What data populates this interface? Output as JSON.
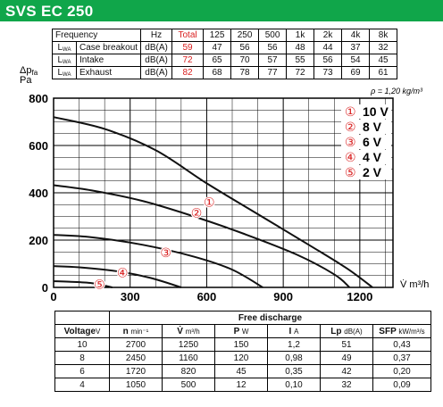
{
  "header": {
    "title": "SVS EC 250",
    "color": "#10a64a"
  },
  "sound_table": {
    "freq_label": "Frequency",
    "columns": [
      "Hz",
      "Total",
      "125",
      "250",
      "500",
      "1k",
      "2k",
      "4k",
      "8k"
    ],
    "lwa_label": "L",
    "lwa_sub": "WA",
    "rows": [
      {
        "label": "Case breakout",
        "unit": "dB(A)",
        "total": "59",
        "values": [
          "47",
          "56",
          "56",
          "48",
          "44",
          "37",
          "32"
        ]
      },
      {
        "label": "Intake",
        "unit": "dB(A)",
        "total": "72",
        "values": [
          "65",
          "70",
          "57",
          "55",
          "56",
          "54",
          "45"
        ]
      },
      {
        "label": "Exhaust",
        "unit": "dB(A)",
        "total": "82",
        "values": [
          "68",
          "78",
          "77",
          "72",
          "73",
          "69",
          "61"
        ]
      }
    ]
  },
  "chart_data": {
    "type": "line",
    "xlabel": "V̇ m³/h",
    "ylabel": "Δp",
    "ylabel_sub": "fa",
    "ylabel_unit": "Pa",
    "density_note": "ρ = 1,20 kg/m³",
    "xlim": [
      0,
      1330
    ],
    "ylim": [
      0,
      800
    ],
    "x_ticks": [
      "0",
      "300",
      "600",
      "900",
      "1200"
    ],
    "y_ticks": [
      "0",
      "200",
      "400",
      "600",
      "800"
    ],
    "grid": true,
    "legend_position": "top-right",
    "series": [
      {
        "name": "10 V",
        "marker": "①",
        "x": [
          0,
          200,
          400,
          600,
          800,
          1000,
          1150,
          1250
        ],
        "y": [
          720,
          670,
          580,
          440,
          310,
          180,
          80,
          0
        ]
      },
      {
        "name": "8 V",
        "marker": "②",
        "x": [
          0,
          150,
          350,
          550,
          750,
          950,
          1100,
          1160
        ],
        "y": [
          432,
          410,
          365,
          300,
          225,
          140,
          55,
          0
        ]
      },
      {
        "name": "6 V",
        "marker": "③",
        "x": [
          0,
          150,
          350,
          550,
          700,
          820
        ],
        "y": [
          222,
          212,
          180,
          130,
          75,
          0
        ]
      },
      {
        "name": "4 V",
        "marker": "④",
        "x": [
          0,
          100,
          250,
          380,
          500
        ],
        "y": [
          90,
          85,
          68,
          40,
          0
        ]
      },
      {
        "name": "2 V",
        "marker": "⑤",
        "x": [
          0,
          60,
          150,
          230
        ],
        "y": [
          26,
          24,
          18,
          0
        ]
      }
    ],
    "curve_color": "#111111",
    "marker_color": "#d92020"
  },
  "perf_table": {
    "free_discharge": "Free discharge",
    "headers": [
      {
        "name": "Voltage",
        "unit": "V"
      },
      {
        "name": "n",
        "unit": "min⁻¹"
      },
      {
        "name": "V̇",
        "unit": "m³/h"
      },
      {
        "name": "P",
        "unit": "W"
      },
      {
        "name": "I",
        "unit": "A"
      },
      {
        "name": "Lp",
        "unit": "dB(A)"
      },
      {
        "name": "SFP",
        "unit": "kW/m³/s"
      }
    ],
    "rows": [
      [
        "10",
        "2700",
        "1250",
        "150",
        "1,2",
        "51",
        "0,43"
      ],
      [
        "8",
        "2450",
        "1160",
        "120",
        "0,98",
        "49",
        "0,37"
      ],
      [
        "6",
        "1720",
        "820",
        "45",
        "0,35",
        "42",
        "0,20"
      ],
      [
        "4",
        "1050",
        "500",
        "12",
        "0,10",
        "32",
        "0,09"
      ]
    ]
  }
}
